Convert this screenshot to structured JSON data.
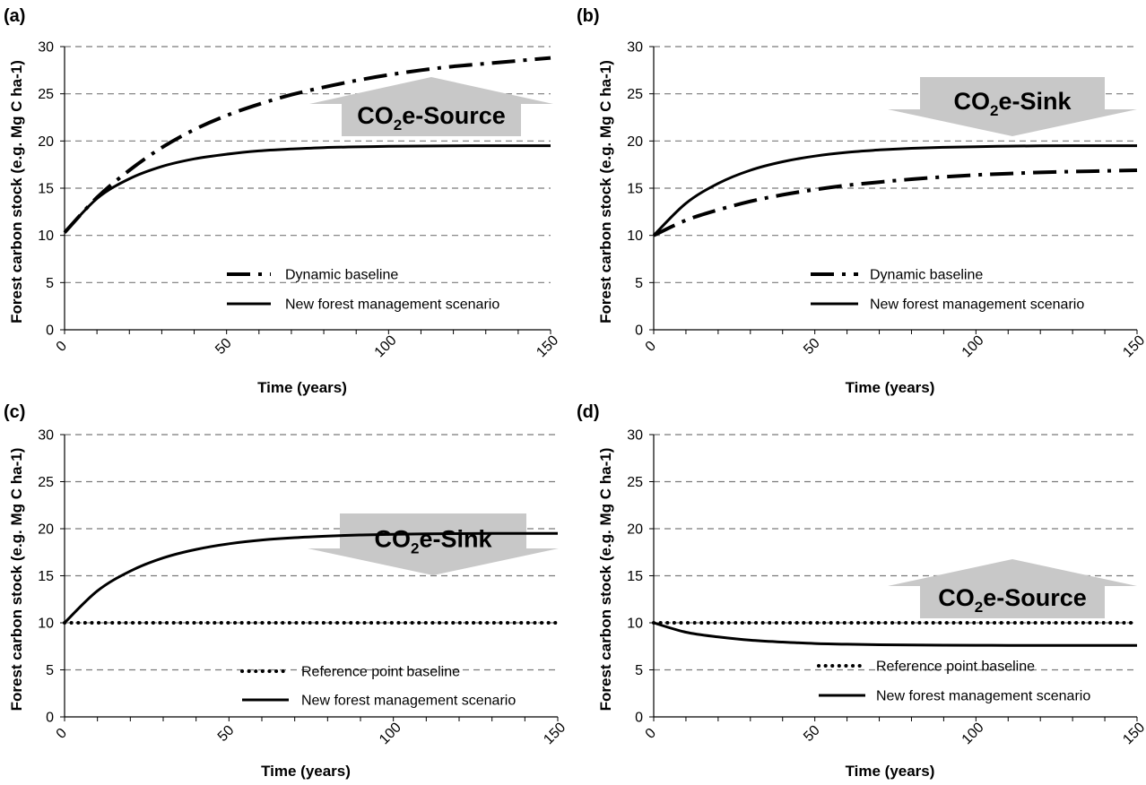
{
  "chart_data": [
    {
      "panel": "(a)",
      "type": "line",
      "xlabel": "Time (years)",
      "ylabel": "Forest carbon stock (e.g. Mg C ha-1)",
      "xlim": [
        0,
        150
      ],
      "ylim": [
        0,
        30
      ],
      "xticks": [
        0,
        50,
        100,
        150
      ],
      "yticks": [
        0,
        5,
        10,
        15,
        20,
        25,
        30
      ],
      "grid": "horizontal-dashed",
      "legend": "bottom-right",
      "series": [
        {
          "name": "Dynamic baseline",
          "style": "dash-dot",
          "x": [
            0,
            10,
            20,
            30,
            40,
            50,
            60,
            70,
            80,
            90,
            100,
            110,
            120,
            130,
            140,
            150
          ],
          "y": [
            10.3,
            14.0,
            16.9,
            19.3,
            21.2,
            22.7,
            23.9,
            24.9,
            25.7,
            26.4,
            27.0,
            27.5,
            27.9,
            28.2,
            28.5,
            28.8
          ]
        },
        {
          "name": "New forest management scenario",
          "style": "solid",
          "x": [
            0,
            10,
            20,
            30,
            40,
            50,
            60,
            70,
            80,
            90,
            100,
            110,
            120,
            130,
            140,
            150
          ],
          "y": [
            10.3,
            13.9,
            16.0,
            17.3,
            18.1,
            18.6,
            18.95,
            19.15,
            19.3,
            19.38,
            19.43,
            19.46,
            19.48,
            19.5,
            19.5,
            19.5
          ]
        }
      ],
      "annotation": {
        "text": "CO",
        "subscript": "2",
        "suffix": "e-Source",
        "direction": "up"
      }
    },
    {
      "panel": "(b)",
      "type": "line",
      "xlabel": "Time (years)",
      "ylabel": "Forest carbon stock (e.g. Mg C ha-1)",
      "xlim": [
        0,
        150
      ],
      "ylim": [
        0,
        30
      ],
      "xticks": [
        0,
        50,
        100,
        150
      ],
      "yticks": [
        0,
        5,
        10,
        15,
        20,
        25,
        30
      ],
      "grid": "horizontal-dashed",
      "legend": "bottom-right",
      "series": [
        {
          "name": "Dynamic baseline",
          "style": "dash-dot",
          "x": [
            0,
            10,
            20,
            30,
            40,
            50,
            60,
            70,
            80,
            90,
            100,
            110,
            120,
            130,
            140,
            150
          ],
          "y": [
            10.0,
            11.6,
            12.7,
            13.6,
            14.3,
            14.85,
            15.3,
            15.65,
            15.95,
            16.2,
            16.4,
            16.55,
            16.67,
            16.76,
            16.83,
            16.9
          ]
        },
        {
          "name": "New forest management scenario",
          "style": "solid",
          "x": [
            0,
            10,
            20,
            30,
            40,
            50,
            60,
            70,
            80,
            90,
            100,
            110,
            120,
            130,
            140,
            150
          ],
          "y": [
            10.0,
            13.4,
            15.5,
            16.9,
            17.8,
            18.4,
            18.8,
            19.05,
            19.22,
            19.33,
            19.4,
            19.45,
            19.48,
            19.5,
            19.5,
            19.5
          ]
        }
      ],
      "annotation": {
        "text": "CO",
        "subscript": "2",
        "suffix": "e-Sink",
        "direction": "down"
      }
    },
    {
      "panel": "(c)",
      "type": "line",
      "xlabel": "Time (years)",
      "ylabel": "Forest carbon stock (e.g. Mg C ha-1)",
      "xlim": [
        0,
        150
      ],
      "ylim": [
        0,
        30
      ],
      "xticks": [
        0,
        50,
        100,
        150
      ],
      "yticks": [
        0,
        5,
        10,
        15,
        20,
        25,
        30
      ],
      "grid": "horizontal-dashed",
      "legend": "bottom-right",
      "series": [
        {
          "name": "Reference point baseline",
          "style": "dotted",
          "x": [
            0,
            150
          ],
          "y": [
            10.0,
            10.0
          ]
        },
        {
          "name": "New forest management scenario",
          "style": "solid",
          "x": [
            0,
            10,
            20,
            30,
            40,
            50,
            60,
            70,
            80,
            90,
            100,
            110,
            120,
            130,
            140,
            150
          ],
          "y": [
            10.0,
            13.4,
            15.5,
            16.9,
            17.8,
            18.4,
            18.8,
            19.05,
            19.22,
            19.33,
            19.4,
            19.45,
            19.48,
            19.5,
            19.5,
            19.5
          ]
        }
      ],
      "annotation": {
        "text": "CO",
        "subscript": "2",
        "suffix": "e-Sink",
        "direction": "down"
      }
    },
    {
      "panel": "(d)",
      "type": "line",
      "xlabel": "Time (years)",
      "ylabel": "Forest carbon stock (e.g. Mg C ha-1)",
      "xlim": [
        0,
        150
      ],
      "ylim": [
        0,
        30
      ],
      "xticks": [
        0,
        50,
        100,
        150
      ],
      "yticks": [
        0,
        5,
        10,
        15,
        20,
        25,
        30
      ],
      "grid": "horizontal-dashed",
      "legend": "bottom-right",
      "series": [
        {
          "name": "Reference point baseline",
          "style": "dotted",
          "x": [
            0,
            150
          ],
          "y": [
            10.0,
            10.0
          ]
        },
        {
          "name": "New forest management scenario",
          "style": "solid",
          "x": [
            0,
            10,
            20,
            30,
            40,
            50,
            60,
            70,
            80,
            90,
            100,
            110,
            120,
            130,
            140,
            150
          ],
          "y": [
            10.0,
            9.0,
            8.5,
            8.15,
            7.95,
            7.8,
            7.72,
            7.67,
            7.64,
            7.62,
            7.61,
            7.6,
            7.6,
            7.6,
            7.6,
            7.6
          ]
        }
      ],
      "annotation": {
        "text": "CO",
        "subscript": "2",
        "suffix": "e-Source",
        "direction": "up"
      }
    }
  ]
}
